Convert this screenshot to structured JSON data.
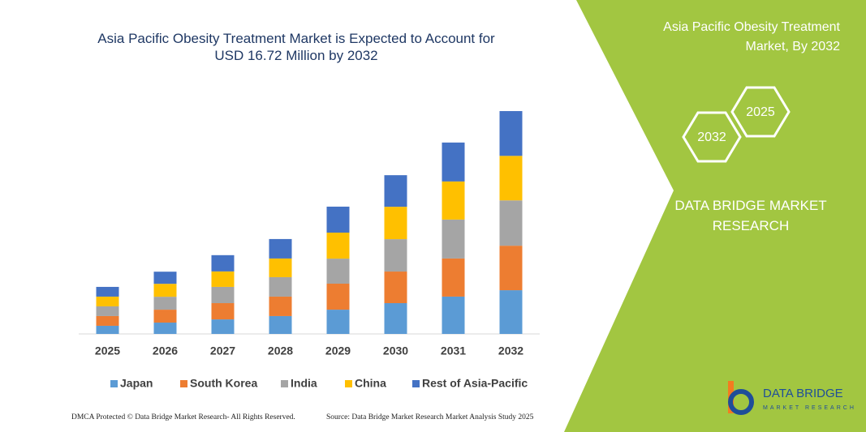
{
  "chart_data": {
    "type": "stacked-bar",
    "title": "Asia Pacific Obesity Treatment Market is Expected to Account for USD 16.72 Million by 2032",
    "categories": [
      "2025",
      "2026",
      "2027",
      "2028",
      "2029",
      "2030",
      "2031",
      "2032"
    ],
    "series": [
      {
        "name": "Japan",
        "color": "#5b9bd5",
        "values": [
          0.61,
          0.85,
          1.09,
          1.34,
          1.82,
          2.31,
          2.8,
          3.28
        ]
      },
      {
        "name": "South Korea",
        "color": "#ed7d31",
        "values": [
          0.73,
          0.97,
          1.22,
          1.46,
          1.95,
          2.37,
          2.86,
          3.34
        ]
      },
      {
        "name": "India",
        "color": "#a5a5a5",
        "values": [
          0.73,
          0.97,
          1.22,
          1.46,
          1.88,
          2.43,
          2.92,
          3.4
        ]
      },
      {
        "name": "China",
        "color": "#ffc000",
        "values": [
          0.73,
          0.97,
          1.16,
          1.4,
          1.95,
          2.43,
          2.86,
          3.34
        ]
      },
      {
        "name": "Rest of Asia-Pacific",
        "color": "#4472c4",
        "values": [
          0.73,
          0.91,
          1.22,
          1.46,
          1.95,
          2.37,
          2.92,
          3.36
        ]
      }
    ],
    "ylim": [
      0,
      18
    ],
    "legend": "bottom"
  },
  "panel": {
    "title": "Asia Pacific Obesity Treatment Market, By 2032",
    "hex_start": "2025",
    "hex_end": "2032",
    "brand": "DATA BRIDGE MARKET RESEARCH"
  },
  "footer": {
    "left": "DMCA Protected © Data Bridge Market Research- All Rights Reserved.",
    "right": "Source: Data Bridge Market Research Market Analysis Study 2025"
  },
  "logo": {
    "name": "DATA BRIDGE",
    "tagline": "MARKET RESEARCH"
  }
}
